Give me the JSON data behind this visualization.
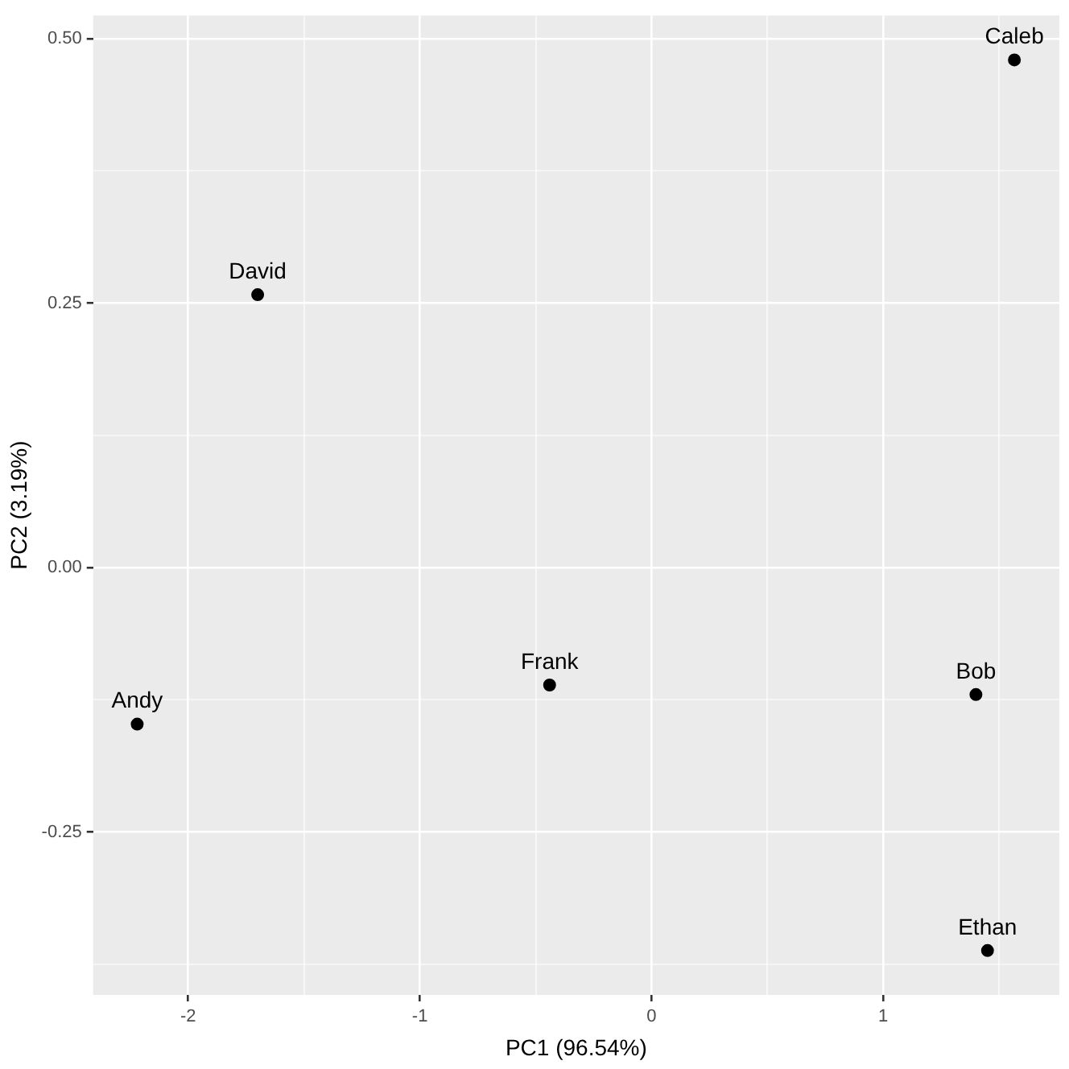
{
  "chart_data": {
    "type": "scatter",
    "xlabel": "PC1 (96.54%)",
    "ylabel": "PC2 (3.19%)",
    "x": [
      -2.22,
      1.4,
      1.566,
      -1.7,
      1.45,
      -0.44
    ],
    "series": [
      {
        "color": "#000000",
        "values": [
          -0.148,
          -0.12,
          0.48,
          0.258,
          -0.362,
          -0.111
        ]
      }
    ],
    "xlim": [
      -2.41,
      1.76
    ],
    "ylim": [
      -0.404,
      0.522
    ],
    "xticks": [
      -2,
      {
        "value": -1.5,
        "label": null
      },
      -1,
      {
        "value": -0.5,
        "label": null
      },
      0,
      {
        "value": 0.5,
        "label": null
      },
      1,
      {
        "value": 1.5,
        "label": null
      }
    ],
    "yticks": [
      {
        "value": -0.375,
        "label": null
      },
      -0.25,
      {
        "value": -0.125,
        "label": null
      },
      {
        "value": 0,
        "label": "0.00"
      },
      {
        "value": 0.125,
        "label": null
      },
      {
        "value": 0.25,
        "label": "0.25"
      },
      {
        "value": 0.375,
        "label": null
      },
      {
        "value": 0.5,
        "label": "0.50"
      }
    ],
    "annotations": [
      {
        "text": "Andy",
        "x": -2.22,
        "y": -0.148
      },
      {
        "text": "Bob",
        "x": 1.4,
        "y": -0.12
      },
      {
        "text": "Caleb",
        "x": 1.566,
        "y": 0.48
      },
      {
        "text": "David",
        "x": -1.7,
        "y": 0.258
      },
      {
        "text": "Ethan",
        "x": 1.45,
        "y": -0.362
      },
      {
        "text": "Frank",
        "x": -0.44,
        "y": -0.111
      }
    ],
    "grid": true,
    "marker": "circle"
  }
}
